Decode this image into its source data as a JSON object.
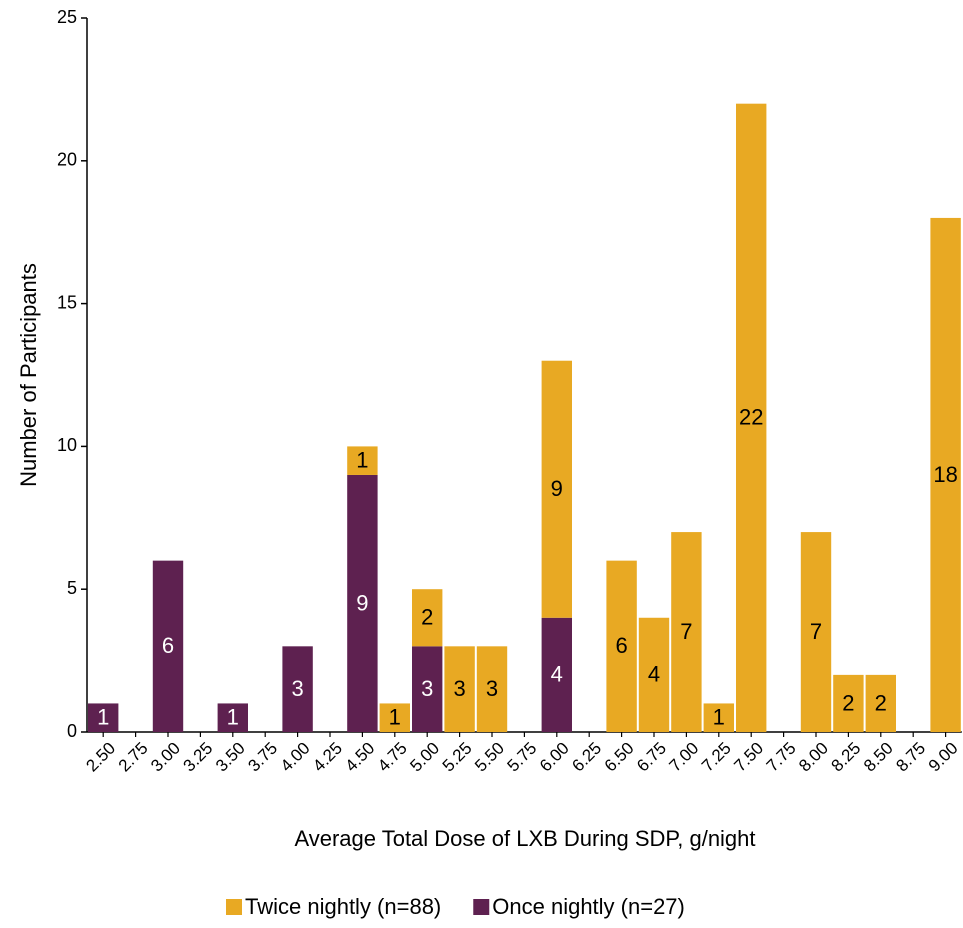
{
  "chart_data": {
    "type": "stacked_bar",
    "x_label": "Average Total Dose of LXB During SDP, g/night",
    "y_label": "Number of Participants",
    "categories": [
      "2.50",
      "2.75",
      "3.00",
      "3.25",
      "3.50",
      "3.75",
      "4.00",
      "4.25",
      "4.50",
      "4.75",
      "5.00",
      "5.25",
      "5.50",
      "5.75",
      "6.00",
      "6.25",
      "6.50",
      "6.75",
      "7.00",
      "7.25",
      "7.50",
      "7.75",
      "8.00",
      "8.25",
      "8.50",
      "8.75",
      "9.00"
    ],
    "series": [
      {
        "name": "Once nightly (n=27)",
        "color": "#5e2150",
        "label_color": "#ffffff",
        "values": [
          1,
          0,
          6,
          0,
          1,
          0,
          3,
          0,
          9,
          0,
          3,
          0,
          0,
          0,
          4,
          0,
          0,
          0,
          0,
          0,
          0,
          0,
          0,
          0,
          0,
          0,
          0
        ]
      },
      {
        "name": "Twice nightly (n=88)",
        "color": "#e8a923",
        "label_color": "#000000",
        "values": [
          0,
          0,
          0,
          0,
          0,
          0,
          0,
          0,
          1,
          1,
          2,
          3,
          3,
          0,
          9,
          0,
          6,
          4,
          7,
          1,
          22,
          0,
          7,
          2,
          2,
          0,
          18
        ]
      }
    ],
    "ylim": [
      0,
      25
    ],
    "yticks": [
      0,
      5,
      10,
      15,
      20,
      25
    ]
  }
}
